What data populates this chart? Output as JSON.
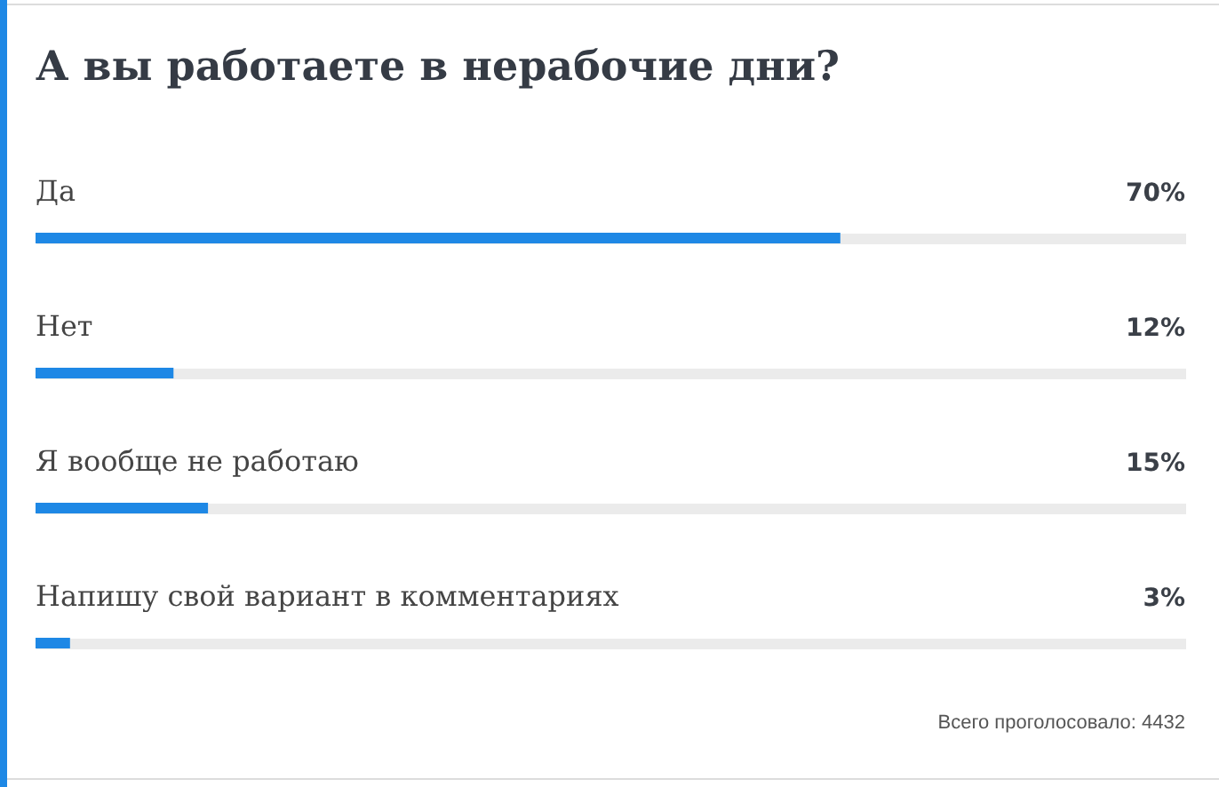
{
  "chart_data": {
    "type": "bar",
    "orientation": "horizontal",
    "title": "А вы работаете в нерабочие дни?",
    "categories": [
      "Да",
      "Нет",
      "Я вообще не работаю",
      "Напишу свой вариант в комментариях"
    ],
    "values": [
      70,
      12,
      15,
      3
    ],
    "value_labels": [
      "70%",
      "12%",
      "15%",
      "3%"
    ],
    "color": "#1e88e5",
    "xlim": [
      0,
      100
    ],
    "tick_labels": "y",
    "annotations": [
      "Всего проголосовало: 4432"
    ]
  }
}
